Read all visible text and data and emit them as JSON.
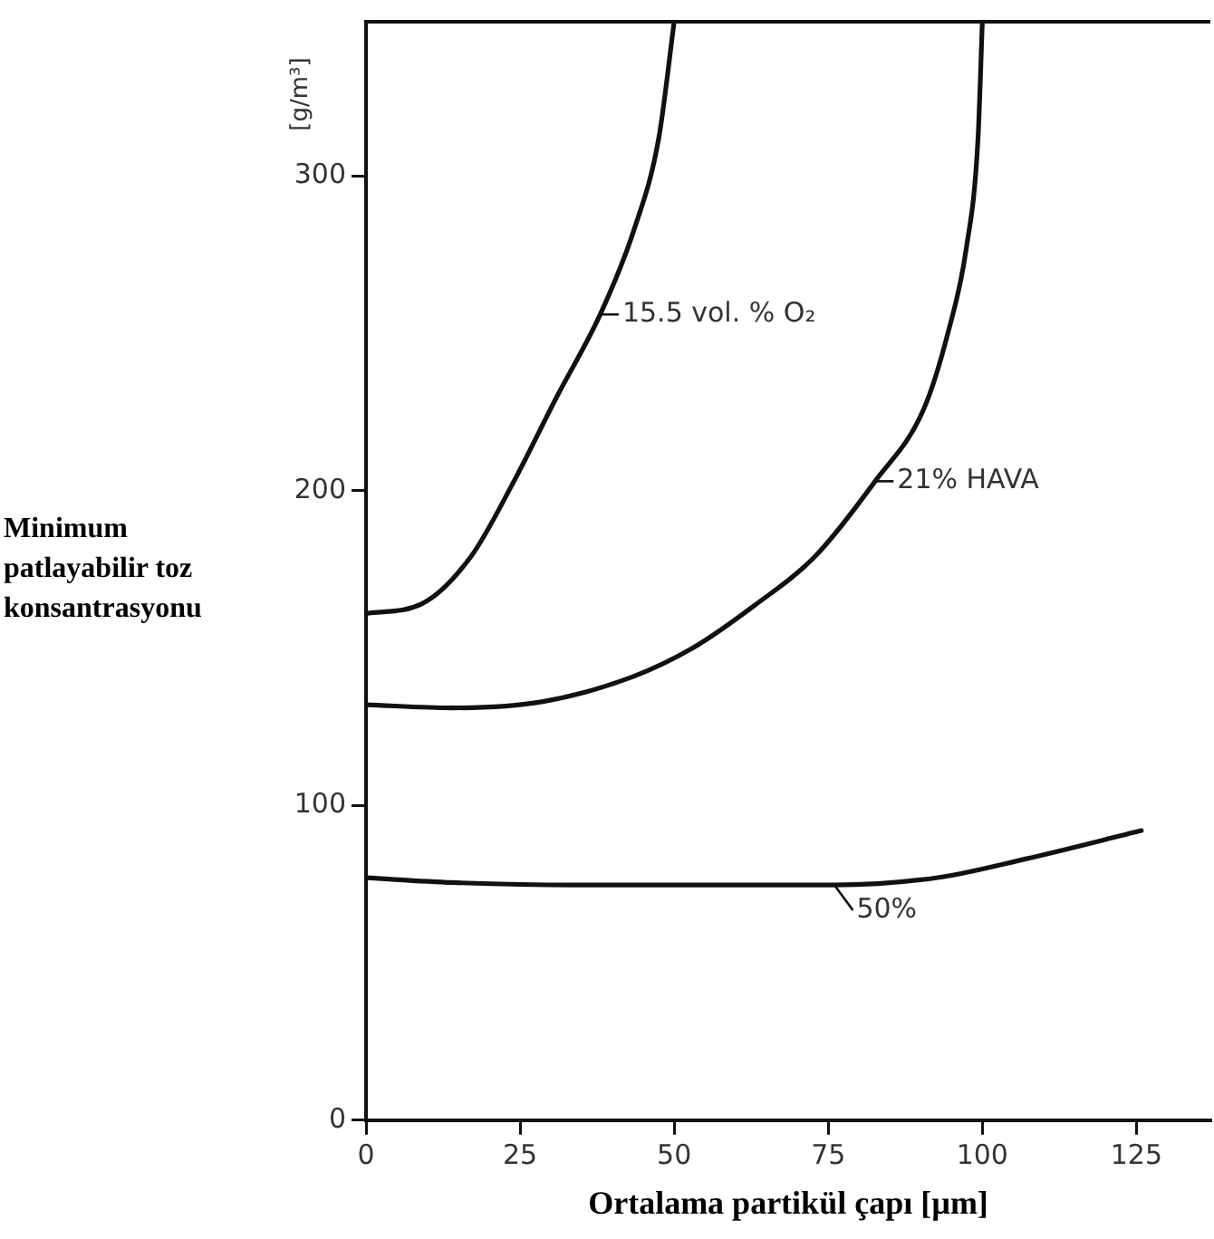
{
  "chart_data": {
    "type": "line",
    "xlabel": "Ortalama partikül çapı [µm]",
    "ylabel": "Minimum patlayabilir toz konsantrasyonu",
    "xlim": [
      0,
      137
    ],
    "xticks": [
      0,
      25,
      50,
      75,
      100,
      125
    ],
    "ylim": [
      0,
      349
    ],
    "yticks": [
      0,
      100,
      200,
      300
    ],
    "grid": false,
    "legend": "center",
    "marker": "none",
    "line_style": "solid",
    "series": [
      {
        "name": "15.5 vol. % O₂",
        "color": "#111111",
        "x": [
          0,
          9,
          17,
          24,
          31,
          38,
          43.5,
          47.5,
          50
        ],
        "values": [
          161,
          164,
          179,
          203,
          230,
          256,
          283,
          312,
          349
        ]
      },
      {
        "name": "21% HAVA",
        "color": "#111111",
        "x": [
          0,
          14,
          28.7,
          43.4,
          53,
          63,
          72.8,
          82.6,
          90.5,
          94.4,
          97.4,
          99.3,
          100
        ],
        "values": [
          132,
          131,
          133,
          141,
          150,
          163.5,
          179,
          203,
          226,
          250,
          277,
          312,
          349
        ]
      },
      {
        "name": "50%",
        "color": "#111111",
        "x": [
          0,
          14,
          33.6,
          53,
          76,
          92.5,
          107,
          125.8
        ],
        "values": [
          77,
          75.5,
          74.7,
          74.7,
          74.7,
          77,
          83,
          92
        ]
      }
    ],
    "annotations": [
      "[g/m³]"
    ]
  }
}
